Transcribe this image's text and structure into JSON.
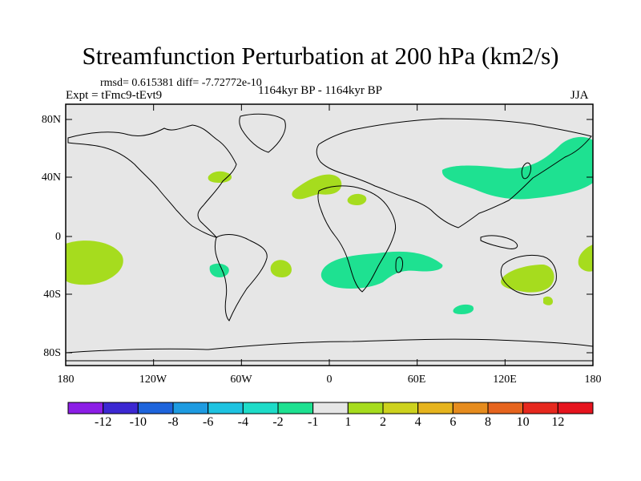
{
  "title": "Streamfunction Perturbation at 200 hPa (km2/s)",
  "stats": "rmsd= 0.615381 diff= -7.72772e-10",
  "experiment": "Expt = tFmc9-tEvt9",
  "period": "1164kyr BP - 1164kyr BP",
  "season": "JJA",
  "map": {
    "y_ticks": [
      "80N",
      "40N",
      "0",
      "40S",
      "80S"
    ],
    "x_ticks": [
      "180",
      "120W",
      "60W",
      "0",
      "60E",
      "120E",
      "180"
    ],
    "ocean_color": "#e6e6e6",
    "regions": [
      {
        "name": "positive-anomaly-pacific-west",
        "level": "1 to 2",
        "color": "#a6dc1e"
      },
      {
        "name": "negative-anomaly-east-asia",
        "level": "-2 to -1",
        "color": "#1ee191"
      },
      {
        "name": "positive-anomaly-north-atlantic",
        "level": "1 to 2",
        "color": "#a6dc1e"
      },
      {
        "name": "negative-anomaly-south-atlantic-indian",
        "level": "-2 to -1",
        "color": "#1ee191"
      },
      {
        "name": "positive-anomaly-australia",
        "level": "1 to 2",
        "color": "#a6dc1e"
      }
    ]
  },
  "colorbar": {
    "labels": [
      "-12",
      "-10",
      "-8",
      "-6",
      "-4",
      "-2",
      "-1",
      "1",
      "2",
      "4",
      "6",
      "8",
      "10",
      "12"
    ],
    "colors": [
      "#8c1ee6",
      "#3c28d2",
      "#1e64dc",
      "#1e9be1",
      "#1ec3e1",
      "#1edcc8",
      "#1ee191",
      "#e6e6e6",
      "#a6dc1e",
      "#cdd21e",
      "#e6b41e",
      "#e68c1e",
      "#e6641e",
      "#e6281e",
      "#e6141e"
    ]
  }
}
